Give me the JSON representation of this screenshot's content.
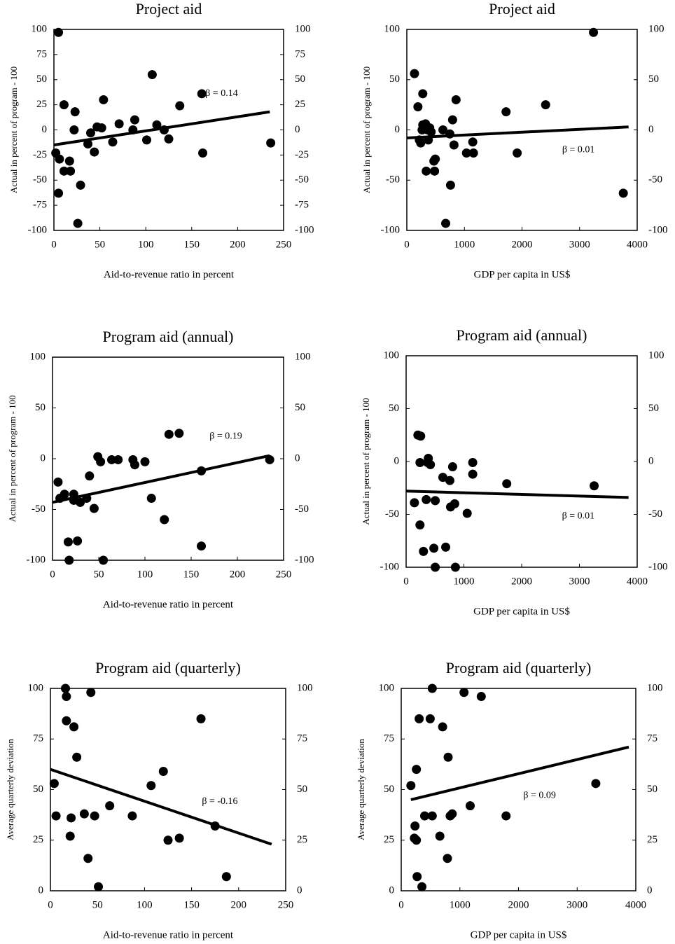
{
  "chart_data": [
    {
      "type": "scatter",
      "title": "Project aid",
      "xlabel": "Aid-to-revenue ratio in percent",
      "ylabel": "Actual  in percent of program - 100",
      "annotation": "β = 0.14",
      "color": "#000000",
      "x": [
        5,
        2,
        6,
        5,
        11,
        11,
        17,
        18,
        23,
        22,
        26,
        29,
        37,
        40,
        44,
        47,
        52,
        54,
        64,
        71,
        86,
        88,
        101,
        107,
        112,
        120,
        125,
        137,
        161,
        162,
        236
      ],
      "values": [
        97,
        -23,
        -29,
        -63,
        25,
        -41,
        -31,
        -41,
        18,
        0,
        -93,
        -55,
        -14,
        -3,
        -22,
        3,
        2,
        30,
        -12,
        6,
        0,
        10,
        -10,
        55,
        5,
        0,
        -9,
        24,
        36,
        -23,
        -13
      ],
      "trend": {
        "x": [
          0,
          235
        ],
        "values": [
          -15,
          18
        ]
      },
      "xlim": [
        0,
        250
      ],
      "xticks": [
        0,
        50,
        100,
        150,
        200,
        250
      ],
      "ylim": [
        -100,
        100
      ],
      "yticks": [
        -100,
        -75,
        -50,
        -25,
        0,
        25,
        50,
        75,
        100
      ],
      "y2lim": [
        -100,
        100
      ],
      "y2ticks": [
        -100,
        -75,
        -50,
        -25,
        0,
        25,
        50,
        75,
        100
      ]
    },
    {
      "type": "scatter",
      "title": "Project aid",
      "xlabel": "GDP per capita in US$",
      "ylabel": "Actual in percent of program - 100",
      "annotation": "β = 0.01",
      "color": "#000000",
      "x": [
        133,
        193,
        217,
        241,
        277,
        265,
        325,
        277,
        337,
        361,
        398,
        373,
        422,
        470,
        494,
        482,
        627,
        675,
        747,
        759,
        795,
        819,
        855,
        1036,
        1145,
        1157,
        1723,
        1916,
        2410,
        3241,
        3759
      ],
      "values": [
        56,
        23,
        -10,
        -13,
        5,
        0,
        6,
        36,
        -41,
        0,
        2,
        -10,
        -2,
        -31,
        -29,
        -41,
        0,
        -93,
        -4,
        -55,
        10,
        -15,
        30,
        -23,
        -12,
        -23,
        18,
        -23,
        25,
        97,
        -63
      ],
      "trend": {
        "x": [
          0,
          3850
        ],
        "values": [
          -8,
          3
        ]
      },
      "xlim": [
        0,
        4000
      ],
      "xticks": [
        0,
        1000,
        2000,
        3000,
        4000
      ],
      "ylim": [
        -100,
        100
      ],
      "yticks": [
        -100,
        -50,
        0,
        50,
        100
      ],
      "y2lim": [
        -100,
        100
      ],
      "y2ticks": [
        -100,
        -50,
        0,
        50,
        100
      ]
    },
    {
      "type": "scatter",
      "title": "Program aid (annual)",
      "xlabel": "Aid-to-revenue ratio in percent",
      "ylabel": "Actual in percent of program - 100",
      "annotation": "β = 0.19",
      "color": "#000000",
      "x": [
        6,
        8,
        13,
        17,
        18,
        23,
        23,
        27,
        30,
        37,
        40,
        45,
        49,
        52,
        55,
        64,
        71,
        87,
        89,
        100,
        107,
        121,
        126,
        137,
        161,
        161,
        235
      ],
      "values": [
        -23,
        -39,
        -35,
        -82,
        -100,
        -35,
        -41,
        -81,
        -43,
        -39,
        -17,
        -49,
        2,
        -3,
        -100,
        -1,
        -1,
        -1,
        -6,
        -3,
        -39,
        -60,
        24,
        25,
        -12,
        -86,
        -1
      ],
      "trend": {
        "x": [
          0,
          235
        ],
        "values": [
          -43,
          3
        ]
      },
      "xlim": [
        0,
        250
      ],
      "xticks": [
        0,
        50,
        100,
        150,
        200,
        250
      ],
      "ylim": [
        -100,
        100
      ],
      "yticks": [
        -100,
        -50,
        0,
        50,
        100
      ],
      "y2lim": [
        -100,
        100
      ],
      "y2ticks": [
        -100,
        -50,
        0,
        50,
        100
      ]
    },
    {
      "type": "scatter",
      "title": "Program aid (annual)",
      "xlabel": "GDP per capita in US$",
      "ylabel": "Actual in percent of program - 100",
      "annotation": "β = 0.01",
      "color": "#000000",
      "x": [
        144,
        204,
        252,
        240,
        240,
        300,
        348,
        372,
        384,
        420,
        480,
        504,
        504,
        636,
        685,
        757,
        769,
        805,
        841,
        853,
        1057,
        1153,
        1153,
        1742,
        3255
      ],
      "values": [
        -39,
        25,
        24,
        -60,
        -1,
        -85,
        -36,
        -1,
        3,
        -3,
        -82,
        -100,
        -37,
        -15,
        -81,
        -18,
        -43,
        -5,
        -40,
        -100,
        -49,
        -1,
        -12,
        -21,
        -23
      ],
      "trend": {
        "x": [
          0,
          3850
        ],
        "values": [
          -28,
          -34
        ]
      },
      "xlim": [
        0,
        4000
      ],
      "xticks": [
        0,
        1000,
        2000,
        3000,
        4000
      ],
      "ylim": [
        -100,
        100
      ],
      "yticks": [
        -100,
        -50,
        0,
        50,
        100
      ],
      "y2lim": [
        -100,
        100
      ],
      "y2ticks": [
        -100,
        -50,
        0,
        50,
        100
      ]
    },
    {
      "type": "scatter",
      "title": "Program aid (quarterly)",
      "xlabel": "Aid-to-revenue ratio in percent",
      "ylabel": "Average quarterly deviation",
      "annotation": "β = -0.16",
      "color": "#000000",
      "x": [
        4,
        6,
        16,
        17,
        17,
        21,
        22,
        25,
        28,
        36,
        40,
        43,
        47,
        51,
        63,
        87,
        107,
        120,
        125,
        137,
        160,
        175,
        187
      ],
      "values": [
        53,
        37,
        100,
        96,
        84,
        27,
        36,
        81,
        66,
        38,
        16,
        98,
        37,
        2,
        42,
        37,
        52,
        59,
        25,
        26,
        85,
        32,
        7
      ],
      "trend": {
        "x": [
          0,
          235
        ],
        "values": [
          60,
          23
        ]
      },
      "xlim": [
        0,
        250
      ],
      "xticks": [
        0,
        50,
        100,
        150,
        200,
        250
      ],
      "ylim": [
        0,
        100
      ],
      "yticks": [
        0,
        25,
        50,
        75,
        100
      ],
      "y2lim": [
        0,
        100
      ],
      "y2ticks": [
        0,
        25,
        50,
        75,
        100
      ]
    },
    {
      "type": "scatter",
      "title": "Program aid (quarterly)",
      "xlabel": "GDP per capita in US$",
      "ylabel": "Average quarterly deviation",
      "annotation": "β = 0.09",
      "color": "#000000",
      "x": [
        165,
        224,
        235,
        259,
        259,
        271,
        306,
        353,
        400,
        494,
        529,
        529,
        659,
        706,
        800,
        788,
        835,
        870,
        1071,
        1176,
        1365,
        1788,
        3318
      ],
      "values": [
        52,
        26,
        32,
        25,
        60,
        7,
        85,
        2,
        37,
        85,
        100,
        37,
        27,
        81,
        66,
        16,
        37,
        38,
        98,
        42,
        96,
        37,
        53
      ],
      "trend": {
        "x": [
          165,
          3880
        ],
        "values": [
          45,
          71
        ]
      },
      "xlim": [
        0,
        4000
      ],
      "xticks": [
        0,
        1000,
        2000,
        3000,
        4000
      ],
      "ylim": [
        0,
        100
      ],
      "yticks": [
        0,
        25,
        50,
        75,
        100
      ],
      "y2lim": [
        0,
        100
      ],
      "y2ticks": [
        0,
        25,
        50,
        75,
        100
      ]
    }
  ]
}
